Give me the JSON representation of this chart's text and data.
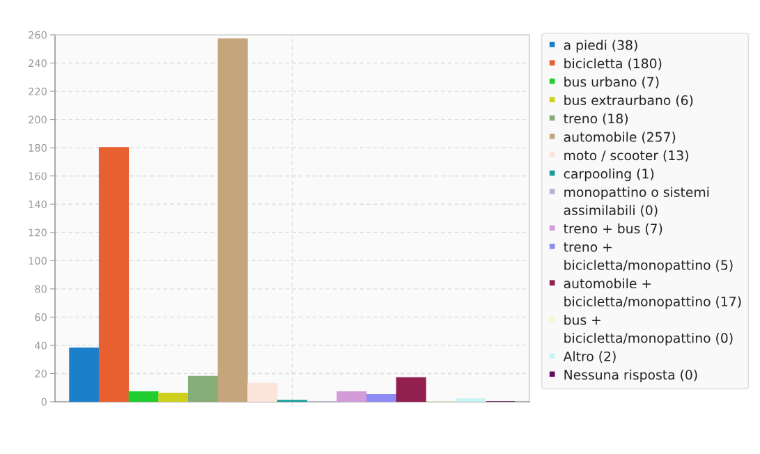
{
  "chart_data": {
    "type": "bar",
    "categories": [
      null
    ],
    "series": [
      {
        "name": "a piedi (38)",
        "color": "#1c7fca",
        "values": [
          38
        ]
      },
      {
        "name": "bicicletta (180)",
        "color": "#e85f30",
        "values": [
          180
        ]
      },
      {
        "name": "bus urbano (7)",
        "color": "#20cc30",
        "values": [
          7
        ]
      },
      {
        "name": "bus extraurbano (6)",
        "color": "#cfcf1e",
        "values": [
          6
        ]
      },
      {
        "name": "treno (18)",
        "color": "#86ad77",
        "values": [
          18
        ]
      },
      {
        "name": "automobile (257)",
        "color": "#c5a67c",
        "values": [
          257
        ]
      },
      {
        "name": "moto / scooter (13)",
        "color": "#fbe4da",
        "values": [
          13
        ]
      },
      {
        "name": "carpooling (1)",
        "color": "#1a9e9b",
        "values": [
          1
        ]
      },
      {
        "name": "monopattino o sistemi assimilabili (0)",
        "color": "#b0b8d0",
        "values": [
          0
        ]
      },
      {
        "name": "treno + bus (7)",
        "color": "#d39bd8",
        "values": [
          7
        ]
      },
      {
        "name": "treno + bicicletta/monopattino (5)",
        "color": "#8e8cf4",
        "values": [
          5
        ]
      },
      {
        "name": "automobile + bicicletta/monopattino (17)",
        "color": "#91204f",
        "values": [
          17
        ]
      },
      {
        "name": "bus + bicicletta/monopattino (0)",
        "color": "#f6f6cf",
        "values": [
          0
        ]
      },
      {
        "name": "Altro (2)",
        "color": "#c8f4f4",
        "values": [
          2
        ]
      },
      {
        "name": "Nessuna risposta (0)",
        "color": "#5e0f5e",
        "values": [
          0
        ]
      }
    ],
    "ylim": [
      0,
      260
    ],
    "yticks": [
      0,
      20,
      40,
      60,
      80,
      100,
      120,
      140,
      160,
      180,
      200,
      220,
      240,
      260
    ],
    "grid": true,
    "legend": "right",
    "tick_labels": "y"
  }
}
